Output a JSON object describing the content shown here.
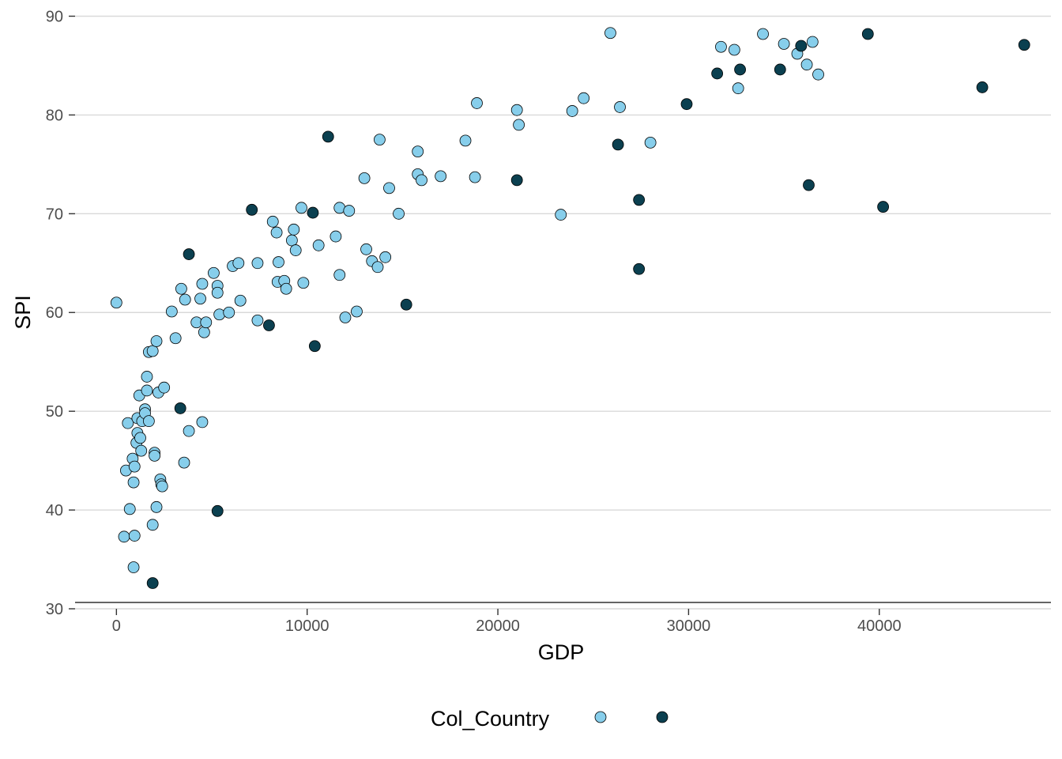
{
  "chart_data": {
    "type": "scatter",
    "xlabel": "GDP",
    "ylabel": "SPI",
    "xlim": [
      -2500,
      49000
    ],
    "ylim": [
      30,
      91
    ],
    "x_ticks": [
      0,
      10000,
      20000,
      30000,
      40000
    ],
    "y_ticks": [
      30,
      40,
      50,
      60,
      70,
      80,
      90
    ],
    "grid": "horizontal-major",
    "legend": {
      "title": "Col_Country",
      "position": "bottom",
      "keys": [
        {
          "label": "",
          "color": "#87ceeb"
        },
        {
          "label": "",
          "color": "#0b4050"
        }
      ]
    },
    "series": [
      {
        "color": "#87ceeb",
        "points": [
          [
            0,
            61
          ],
          [
            400,
            37.3
          ],
          [
            500,
            44
          ],
          [
            600,
            48.8
          ],
          [
            700,
            40.1
          ],
          [
            850,
            45.2
          ],
          [
            900,
            42.8
          ],
          [
            900,
            34.2
          ],
          [
            950,
            37.4
          ],
          [
            950,
            44.4
          ],
          [
            1050,
            46.8
          ],
          [
            1100,
            49.3
          ],
          [
            1100,
            47.8
          ],
          [
            1200,
            51.6
          ],
          [
            1250,
            47.3
          ],
          [
            1300,
            46
          ],
          [
            1350,
            49
          ],
          [
            1500,
            50.2
          ],
          [
            1500,
            49.8
          ],
          [
            1600,
            53.5
          ],
          [
            1600,
            52.1
          ],
          [
            1700,
            49
          ],
          [
            1700,
            56
          ],
          [
            1900,
            38.5
          ],
          [
            1900,
            56.1
          ],
          [
            2000,
            45.8
          ],
          [
            2000,
            45.5
          ],
          [
            2100,
            57.1
          ],
          [
            2100,
            40.3
          ],
          [
            2200,
            51.9
          ],
          [
            2300,
            43.1
          ],
          [
            2350,
            42.6
          ],
          [
            2400,
            42.4
          ],
          [
            2500,
            52.4
          ],
          [
            2900,
            60.1
          ],
          [
            3100,
            57.4
          ],
          [
            3400,
            62.4
          ],
          [
            3550,
            44.8
          ],
          [
            3600,
            61.3
          ],
          [
            3800,
            48
          ],
          [
            4200,
            59
          ],
          [
            4400,
            61.4
          ],
          [
            4500,
            62.9
          ],
          [
            4500,
            48.9
          ],
          [
            4600,
            58
          ],
          [
            4700,
            59
          ],
          [
            5100,
            64
          ],
          [
            5300,
            62.7
          ],
          [
            5300,
            62
          ],
          [
            5400,
            59.8
          ],
          [
            5900,
            60
          ],
          [
            6100,
            64.7
          ],
          [
            6400,
            65
          ],
          [
            6500,
            61.2
          ],
          [
            7400,
            65
          ],
          [
            7400,
            59.2
          ],
          [
            8200,
            69.2
          ],
          [
            8400,
            68.1
          ],
          [
            8450,
            63.1
          ],
          [
            8500,
            65.1
          ],
          [
            8800,
            63.2
          ],
          [
            8900,
            62.4
          ],
          [
            9200,
            67.3
          ],
          [
            9300,
            68.4
          ],
          [
            9400,
            66.3
          ],
          [
            9700,
            70.6
          ],
          [
            9800,
            63
          ],
          [
            10600,
            66.8
          ],
          [
            11500,
            67.7
          ],
          [
            11700,
            63.8
          ],
          [
            11700,
            70.6
          ],
          [
            12000,
            59.5
          ],
          [
            12200,
            70.3
          ],
          [
            12600,
            60.1
          ],
          [
            13000,
            73.6
          ],
          [
            13100,
            66.4
          ],
          [
            13400,
            65.2
          ],
          [
            13700,
            64.6
          ],
          [
            13800,
            77.5
          ],
          [
            14100,
            65.6
          ],
          [
            14300,
            72.6
          ],
          [
            14800,
            70
          ],
          [
            15800,
            76.3
          ],
          [
            15800,
            74
          ],
          [
            16000,
            73.4
          ],
          [
            17000,
            73.8
          ],
          [
            18300,
            77.4
          ],
          [
            18800,
            73.7
          ],
          [
            18900,
            81.2
          ],
          [
            21000,
            80.5
          ],
          [
            21100,
            79
          ],
          [
            23300,
            69.9
          ],
          [
            23900,
            80.4
          ],
          [
            24500,
            81.7
          ],
          [
            25900,
            88.3
          ],
          [
            26400,
            80.8
          ],
          [
            28000,
            77.2
          ],
          [
            31700,
            86.9
          ],
          [
            32400,
            86.6
          ],
          [
            32600,
            82.7
          ],
          [
            33900,
            88.2
          ],
          [
            35000,
            87.2
          ],
          [
            35700,
            86.2
          ],
          [
            36200,
            85.1
          ],
          [
            36500,
            87.4
          ],
          [
            36800,
            84.1
          ]
        ]
      },
      {
        "color": "#0b4050",
        "points": [
          [
            1900,
            32.6
          ],
          [
            3350,
            50.3
          ],
          [
            3800,
            65.9
          ],
          [
            5300,
            39.9
          ],
          [
            7100,
            70.4
          ],
          [
            8000,
            58.7
          ],
          [
            10300,
            70.1
          ],
          [
            10400,
            56.6
          ],
          [
            11100,
            77.8
          ],
          [
            15200,
            60.8
          ],
          [
            21000,
            73.4
          ],
          [
            26300,
            77
          ],
          [
            27400,
            71.4
          ],
          [
            27400,
            64.4
          ],
          [
            29900,
            81.1
          ],
          [
            31500,
            84.2
          ],
          [
            32700,
            84.6
          ],
          [
            34800,
            84.6
          ],
          [
            35900,
            87
          ],
          [
            36300,
            72.9
          ],
          [
            39400,
            88.2
          ],
          [
            40200,
            70.7
          ],
          [
            45400,
            82.8
          ],
          [
            47600,
            87.1
          ]
        ]
      }
    ]
  }
}
